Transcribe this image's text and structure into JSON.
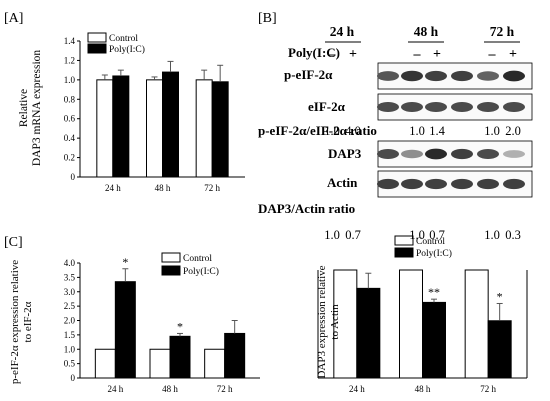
{
  "panel_labels": {
    "a": "[A]",
    "b": "[B]",
    "c": "[C]"
  },
  "colors": {
    "control": "#ffffff",
    "treatment": "#000000",
    "axis": "#000000"
  },
  "chart_data": [
    {
      "id": "A",
      "type": "bar",
      "categories": [
        "24 h",
        "48 h",
        "72 h"
      ],
      "ylabel": "Relative  DAP3 mRNA expression",
      "ylim": [
        0,
        1.4
      ],
      "yticks": [
        "0",
        "0.2",
        "0.4",
        "0.6",
        "0.8",
        "1.0",
        "1.2",
        "1.4"
      ],
      "legend_position": "top-left",
      "series": [
        {
          "name": "Control",
          "values": [
            1.0,
            1.0,
            1.0
          ],
          "errors": [
            0.05,
            0.03,
            0.1
          ]
        },
        {
          "name": "Poly(I:C)",
          "values": [
            1.04,
            1.08,
            0.98
          ],
          "errors": [
            0.06,
            0.11,
            0.17
          ]
        }
      ],
      "annotations": [
        {
          "series": 1,
          "index": 0,
          "text": ""
        },
        {
          "series": 1,
          "index": 1,
          "text": ""
        },
        {
          "series": 1,
          "index": 2,
          "text": ""
        }
      ]
    },
    {
      "id": "C1",
      "type": "bar",
      "categories": [
        "24 h",
        "48 h",
        "72 h"
      ],
      "ylabel": "p-eIF-2α expression relative  to eIF-2α",
      "ylim": [
        0,
        4.0
      ],
      "yticks": [
        "0",
        "0.5",
        "1.0",
        "1.5",
        "2.0",
        "2.5",
        "3.0",
        "3.5",
        "4.0"
      ],
      "legend_position": "top-right",
      "series": [
        {
          "name": "Control",
          "values": [
            1.0,
            1.0,
            1.0
          ],
          "errors": [
            0,
            0,
            0
          ]
        },
        {
          "name": "Poly(I:C)",
          "values": [
            3.35,
            1.45,
            1.55
          ],
          "errors": [
            0.45,
            0.1,
            0.45
          ]
        }
      ],
      "annotations": [
        {
          "series": 1,
          "index": 0,
          "text": "*"
        },
        {
          "series": 1,
          "index": 1,
          "text": "*"
        },
        {
          "series": 1,
          "index": 2,
          "text": ""
        }
      ]
    },
    {
      "id": "C2",
      "type": "bar",
      "categories": [
        "24 h",
        "48 h",
        "72 h"
      ],
      "ylabel": "DAP3 expression relative  to Actin",
      "ylim": [
        0,
        1.0
      ],
      "yticks": [],
      "legend_position": "top",
      "series": [
        {
          "name": "Control",
          "values": [
            1.0,
            1.0,
            1.0
          ],
          "errors": [
            0,
            0,
            0
          ]
        },
        {
          "name": "Poly(I:C)",
          "values": [
            0.83,
            0.7,
            0.53
          ],
          "errors": [
            0.14,
            0.03,
            0.16
          ]
        }
      ],
      "annotations": [
        {
          "series": 1,
          "index": 0,
          "text": ""
        },
        {
          "series": 1,
          "index": 1,
          "text": "**"
        },
        {
          "series": 1,
          "index": 2,
          "text": "*"
        }
      ]
    }
  ],
  "western_blot": {
    "timepoints": [
      "24 h",
      "48 h",
      "72 h"
    ],
    "treatment_label": "Poly(I:C)",
    "signs": [
      "–",
      "+",
      "–",
      "+",
      "–",
      "+"
    ],
    "rows": [
      {
        "label": "p-eIF-2α",
        "intensities": [
          0.75,
          0.9,
          0.85,
          0.85,
          0.7,
          0.95
        ]
      },
      {
        "label": "eIF-2α",
        "intensities": [
          0.8,
          0.8,
          0.8,
          0.8,
          0.8,
          0.8
        ]
      },
      {
        "label": "DAP3",
        "intensities": [
          0.8,
          0.5,
          0.95,
          0.85,
          0.8,
          0.35
        ]
      },
      {
        "label": "Actin",
        "intensities": [
          0.85,
          0.85,
          0.85,
          0.85,
          0.85,
          0.85
        ]
      }
    ],
    "ratio1": {
      "label": "p-eIF-2α/eIF-2α ratio",
      "values": [
        "1.0",
        "4.0",
        "1.0",
        "1.4",
        "1.0",
        "2.0"
      ]
    },
    "ratio2": {
      "label": "DAP3/Actin ratio",
      "values": [
        "1.0",
        "0.7",
        "1.0",
        "0.7",
        "1.0",
        "0.3"
      ]
    }
  }
}
